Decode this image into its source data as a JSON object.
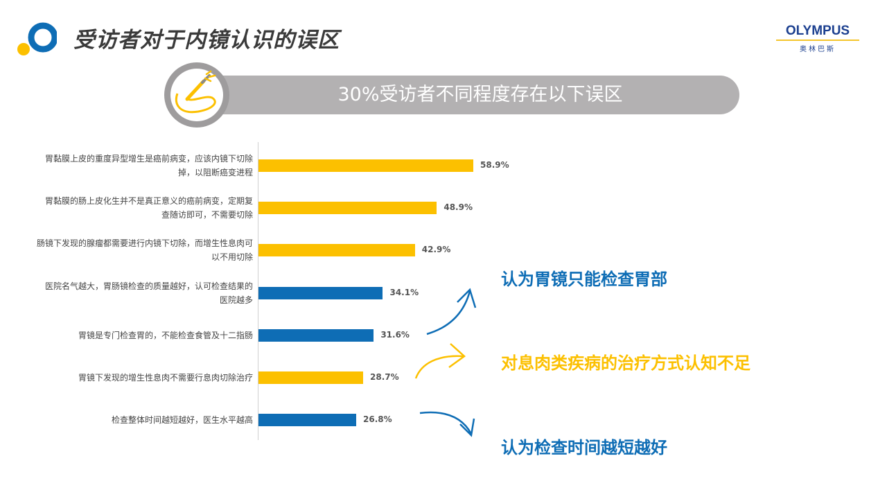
{
  "header": {
    "title": "受访者对于内镜认识的误区",
    "brand": "OLYMPUS",
    "brand_sub": "奥林巴斯",
    "banner_text": "30%受访者不同程度存在以下误区"
  },
  "colors": {
    "yellow": "#fcc000",
    "blue": "#0e6db5",
    "gray": "#b3b1b2"
  },
  "chart_data": {
    "type": "bar",
    "orientation": "horizontal",
    "categories": [
      [
        "胃黏膜上皮的重度异型增生是癌前病变，应该内镜下切除",
        "掉，以阻断癌变进程"
      ],
      [
        "胃黏膜的肠上皮化生并不是真正意义的癌前病变，定期复",
        "查随访即可，不需要切除"
      ],
      [
        "肠镜下发现的腺瘤都需要进行内镜下切除，而增生性息肉可",
        "以不用切除"
      ],
      [
        "医院名气越大，胃肠镜检查的质量越好，认可检查结果的",
        "医院越多"
      ],
      [
        "胃镜是专门检查胃的，不能检查食管及十二指肠"
      ],
      [
        "胃镜下发现的增生性息肉不需要行息肉切除治疗"
      ],
      [
        "检查整体时间越短越好，医生水平越高"
      ]
    ],
    "values": [
      58.9,
      48.9,
      42.9,
      34.1,
      31.6,
      28.7,
      26.8
    ],
    "value_labels": [
      "58.9%",
      "48.9%",
      "42.9%",
      "34.1%",
      "31.6%",
      "28.7%",
      "26.8%"
    ],
    "bar_colors": [
      "yellow",
      "yellow",
      "yellow",
      "blue",
      "blue",
      "yellow",
      "blue"
    ],
    "xlim": [
      0,
      100
    ],
    "grid": false,
    "legend": "none"
  },
  "annotations": [
    {
      "text": "认为胃镜只能检查胃部",
      "color": "blue"
    },
    {
      "text": "对息肉类疾病的治疗方式认知不足",
      "color": "yellow"
    },
    {
      "text": "认为检查时间越短越好",
      "color": "blue"
    }
  ]
}
